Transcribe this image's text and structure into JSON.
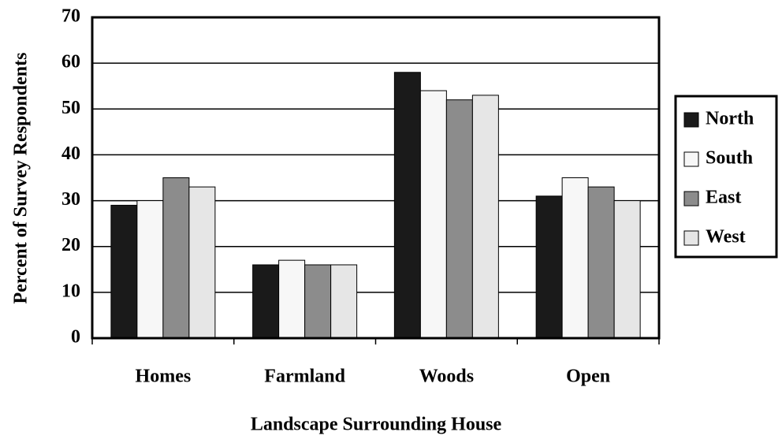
{
  "chart_data": {
    "type": "bar",
    "x_label": "Landscape Surrounding House",
    "y_label": "Percent of Survey Respondents",
    "categories": [
      "Homes",
      "Farmland",
      "Woods",
      "Open"
    ],
    "series": [
      {
        "name": "North",
        "color": "#1a1a1a",
        "values": [
          29,
          16,
          58,
          31
        ]
      },
      {
        "name": "South",
        "color": "#f7f7f7",
        "values": [
          30,
          17,
          54,
          35
        ]
      },
      {
        "name": "East",
        "color": "#8c8c8c",
        "values": [
          35,
          16,
          52,
          33
        ]
      },
      {
        "name": "West",
        "color": "#e6e6e6",
        "values": [
          33,
          16,
          53,
          30
        ]
      }
    ],
    "ylim": [
      0,
      70
    ],
    "yticks": [
      0,
      10,
      20,
      30,
      40,
      50,
      60,
      70
    ],
    "grid": true,
    "legend": "right"
  }
}
